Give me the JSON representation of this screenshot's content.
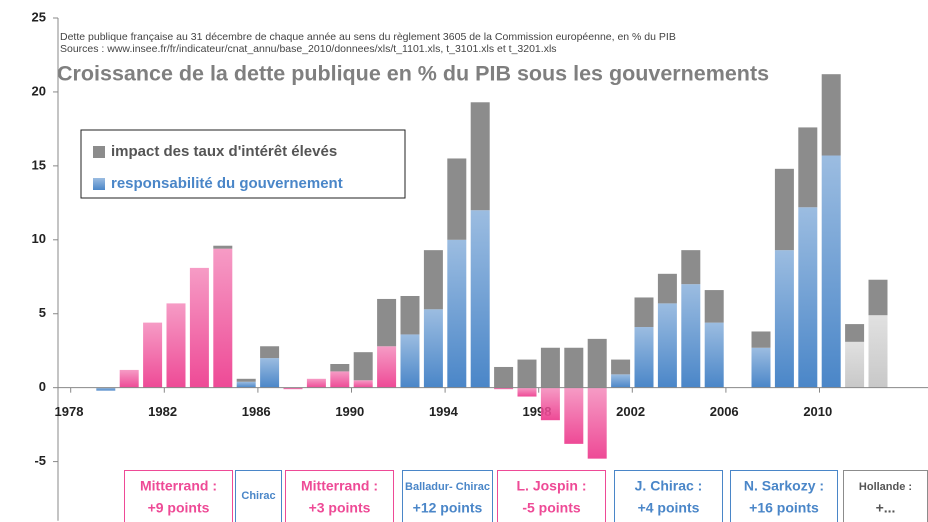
{
  "chart_data": {
    "type": "stacked-bar",
    "subtitle_lines": [
      "Dette publique française au 31 décembre de chaque année au sens du règlement 3605 de la Commission européenne, en % du PIB",
      "Sources : www.insee.fr/fr/indicateur/cnat_annu/base_2010/donnees/xls/t_1101.xls, t_3101.xls et t_3201.xls"
    ],
    "title": "Croissance de la dette publique en % du PIB sous les gouvernements",
    "categories": [
      "1978",
      null,
      null,
      null,
      "1982",
      null,
      null,
      null,
      "1986",
      null,
      null,
      null,
      "1990",
      null,
      null,
      null,
      "1994",
      null,
      null,
      null,
      "1998",
      null,
      null,
      null,
      "2002",
      null,
      null,
      null,
      "2006",
      null,
      null,
      null,
      "2010",
      null,
      null,
      null
    ],
    "series": [
      {
        "name": "responsabilité du gouvernement",
        "color": "#4a86c8",
        "values": [
          null,
          null,
          -0.2,
          1.2,
          4.4,
          5.7,
          8.1,
          9.4,
          0.4,
          2.0,
          -0.1,
          0.6,
          1.1,
          0.5,
          2.8,
          3.6,
          5.3,
          10.0,
          12.0,
          -0.1,
          -0.6,
          -2.2,
          -3.8,
          -4.8,
          0.9,
          4.1,
          5.7,
          7.0,
          4.4,
          null,
          2.7,
          9.3,
          12.2,
          15.7,
          3.1,
          4.9
        ],
        "colors": [
          "#4a86c8",
          "#4a86c8",
          "#4a86c8",
          "#ee4a96",
          "#ee4a96",
          "#ee4a96",
          "#ee4a96",
          "#ee4a96",
          "#4a86c8",
          "#4a86c8",
          "#ee4a96",
          "#ee4a96",
          "#ee4a96",
          "#ee4a96",
          "#ee4a96",
          "#4a86c8",
          "#4a86c8",
          "#4a86c8",
          "#4a86c8",
          "#ee4a96",
          "#ee4a96",
          "#ee4a96",
          "#ee4a96",
          "#ee4a96",
          "#4a86c8",
          "#4a86c8",
          "#4a86c8",
          "#4a86c8",
          "#4a86c8",
          "#4a86c8",
          "#4a86c8",
          "#4a86c8",
          "#4a86c8",
          "#4a86c8",
          "#c8c8c8",
          "#c8c8c8"
        ]
      },
      {
        "name": "impact des taux d'intérêt élevés",
        "color": "#8c8c8c",
        "values": [
          null,
          null,
          null,
          null,
          null,
          null,
          null,
          0.2,
          0.2,
          0.8,
          null,
          null,
          0.5,
          1.9,
          3.2,
          2.6,
          4.0,
          5.5,
          7.3,
          1.4,
          1.9,
          2.7,
          2.7,
          3.3,
          1.0,
          2.0,
          2.0,
          2.3,
          2.2,
          null,
          1.1,
          5.5,
          5.4,
          5.5,
          1.2,
          2.4
        ]
      }
    ],
    "legend_text_colors": [
      "#4a86c8",
      "#555555"
    ],
    "ylim": [
      -9,
      25
    ],
    "yticks": [
      -5,
      0,
      5,
      10,
      15,
      20,
      25
    ],
    "annotations": [
      {
        "lines": [
          "Mitterrand :",
          "+9 points"
        ],
        "color": "#ee4a96"
      },
      {
        "lines": [
          "Chirac"
        ],
        "color": "#4a86c8"
      },
      {
        "lines": [
          "Mitterrand :",
          "+3 points"
        ],
        "color": "#ee4a96"
      },
      {
        "lines": [
          "Balladur- Chirac",
          "+12 points"
        ],
        "color": "#4a86c8"
      },
      {
        "lines": [
          "L. Jospin :",
          "-5 points"
        ],
        "color": "#ee4a96"
      },
      {
        "lines": [
          "J. Chirac :",
          "+4 points"
        ],
        "color": "#4a86c8"
      },
      {
        "lines": [
          "N. Sarkozy :",
          "+16 points"
        ],
        "color": "#4a86c8"
      },
      {
        "lines": [
          "Hollande :",
          "+..."
        ],
        "color": "#8c8c8c"
      }
    ]
  }
}
